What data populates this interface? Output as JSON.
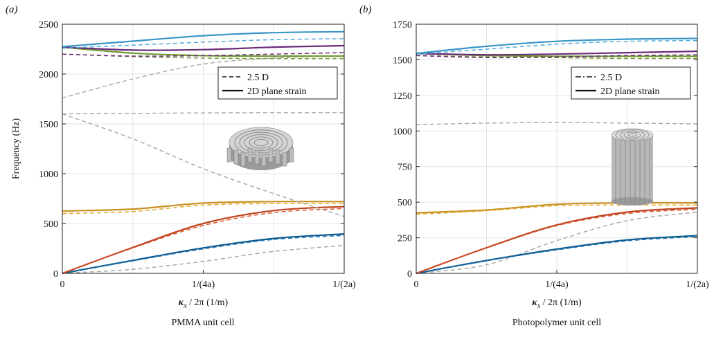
{
  "chart_data": [
    {
      "type": "line",
      "panel_label": "(a)",
      "caption": "PMMA unit cell",
      "ylabel": "Frequency (Hz)",
      "xlabel_kappa": "κ",
      "xlabel_sub": "x",
      "xlabel_rest": " / 2π (1/m)",
      "x_ticks": [
        0,
        0.5,
        1
      ],
      "x_tick_labels": [
        "0",
        "1/(4a)",
        "1/(2a)"
      ],
      "xlim": [
        0,
        1
      ],
      "ylim": [
        0,
        2500
      ],
      "y_ticks": [
        0,
        500,
        1000,
        1500,
        2000,
        2500
      ],
      "grid": true,
      "legend": {
        "position": "upper-right",
        "entries": [
          {
            "label": "2.5 D",
            "style": "dashed"
          },
          {
            "label": "2D plane strain",
            "style": "solid"
          }
        ]
      },
      "inset": "3d-spiral-disk-unit-cell",
      "series": [
        {
          "style": "dashed",
          "color": "#aaaaaa",
          "x": [
            0,
            0.25,
            0.5,
            0.75,
            1
          ],
          "y": [
            0,
            40,
            120,
            220,
            280
          ]
        },
        {
          "style": "solid",
          "color": "#0d5a8f",
          "x": [
            0,
            0.25,
            0.5,
            0.75,
            1
          ],
          "y": [
            0,
            130,
            255,
            350,
            395
          ]
        },
        {
          "style": "dashed",
          "color": "#1f70b0",
          "x": [
            0,
            0.25,
            0.5,
            0.75,
            1
          ],
          "y": [
            0,
            125,
            245,
            340,
            380
          ]
        },
        {
          "style": "solid",
          "color": "#c0431e",
          "x": [
            0,
            0.25,
            0.5,
            0.75,
            1
          ],
          "y": [
            0,
            260,
            500,
            630,
            670
          ]
        },
        {
          "style": "dashed",
          "color": "#d9552f",
          "x": [
            0,
            0.25,
            0.5,
            0.75,
            1
          ],
          "y": [
            0,
            255,
            480,
            610,
            650
          ]
        },
        {
          "style": "solid",
          "color": "#c89020",
          "x": [
            0,
            0.25,
            0.5,
            0.75,
            1
          ],
          "y": [
            625,
            645,
            705,
            720,
            720
          ]
        },
        {
          "style": "dashed",
          "color": "#e0a82a",
          "x": [
            0,
            0.25,
            0.5,
            0.75,
            1
          ],
          "y": [
            600,
            620,
            685,
            700,
            700
          ]
        },
        {
          "style": "dashed",
          "color": "#aaaaaa",
          "x": [
            0,
            0.25,
            0.5,
            0.75,
            1
          ],
          "y": [
            1600,
            1350,
            1050,
            800,
            570
          ]
        },
        {
          "style": "dashed",
          "color": "#aaaaaa",
          "x": [
            0,
            0.25,
            0.5,
            0.75,
            1
          ],
          "y": [
            1600,
            1605,
            1610,
            1612,
            1612
          ]
        },
        {
          "style": "dashed",
          "color": "#aaaaaa",
          "x": [
            0,
            0.25,
            0.5,
            0.75,
            1
          ],
          "y": [
            1760,
            1950,
            2100,
            2160,
            2185
          ]
        },
        {
          "style": "dashed",
          "color": "#7a9a3a",
          "x": [
            0,
            0.25,
            0.5,
            0.75,
            1
          ],
          "y": [
            2200,
            2175,
            2160,
            2155,
            2155
          ]
        },
        {
          "style": "solid",
          "color": "#6d9a30",
          "x": [
            0,
            0.25,
            0.5,
            0.75,
            1
          ],
          "y": [
            2270,
            2210,
            2185,
            2180,
            2180
          ]
        },
        {
          "style": "dashed",
          "color": "#6a2a7a",
          "x": [
            0,
            0.25,
            0.5,
            0.75,
            1
          ],
          "y": [
            2200,
            2180,
            2185,
            2200,
            2215
          ]
        },
        {
          "style": "solid",
          "color": "#6a2a7a",
          "x": [
            0,
            0.25,
            0.5,
            0.75,
            1
          ],
          "y": [
            2270,
            2240,
            2245,
            2270,
            2285
          ]
        },
        {
          "style": "dashed",
          "color": "#55aad8",
          "x": [
            0,
            0.25,
            0.5,
            0.75,
            1
          ],
          "y": [
            2260,
            2290,
            2320,
            2345,
            2355
          ]
        },
        {
          "style": "solid",
          "color": "#3a96c8",
          "x": [
            0,
            0.25,
            0.5,
            0.75,
            1
          ],
          "y": [
            2275,
            2330,
            2385,
            2415,
            2425
          ]
        }
      ]
    },
    {
      "type": "line",
      "panel_label": "(b)",
      "caption": "Photopolymer unit cell",
      "ylabel": "",
      "xlabel_kappa": "κ",
      "xlabel_sub": "x",
      "xlabel_rest": " / 2π (1/m)",
      "x_ticks": [
        0,
        0.5,
        1
      ],
      "x_tick_labels": [
        "0",
        "1/(4a)",
        "1/(2a)"
      ],
      "xlim": [
        0,
        1
      ],
      "ylim": [
        0,
        1750
      ],
      "y_ticks": [
        0,
        250,
        500,
        750,
        1000,
        1250,
        1500,
        1750
      ],
      "grid": true,
      "legend": {
        "position": "upper-right",
        "entries": [
          {
            "label": "2.5 D",
            "style": "dashdot"
          },
          {
            "label": "2D plane strain",
            "style": "solid"
          }
        ]
      },
      "inset": "3d-spiral-cylinder-unit-cell",
      "series": [
        {
          "style": "dashed",
          "color": "#aaaaaa",
          "x": [
            0,
            0.25,
            0.5,
            0.75,
            1
          ],
          "y": [
            0,
            60,
            230,
            370,
            430
          ]
        },
        {
          "style": "solid",
          "color": "#0d5a8f",
          "x": [
            0,
            0.25,
            0.5,
            0.75,
            1
          ],
          "y": [
            0,
            90,
            170,
            235,
            265
          ]
        },
        {
          "style": "dashed",
          "color": "#1f70b0",
          "x": [
            0,
            0.25,
            0.5,
            0.75,
            1
          ],
          "y": [
            0,
            88,
            165,
            228,
            258
          ]
        },
        {
          "style": "solid",
          "color": "#c0431e",
          "x": [
            0,
            0.25,
            0.5,
            0.75,
            1
          ],
          "y": [
            0,
            180,
            340,
            430,
            460
          ]
        },
        {
          "style": "dashed",
          "color": "#d9552f",
          "x": [
            0,
            0.25,
            0.5,
            0.75,
            1
          ],
          "y": [
            0,
            178,
            335,
            420,
            450
          ]
        },
        {
          "style": "solid",
          "color": "#c89020",
          "x": [
            0,
            0.25,
            0.5,
            0.75,
            1
          ],
          "y": [
            425,
            445,
            485,
            495,
            495
          ]
        },
        {
          "style": "dashed",
          "color": "#e0a82a",
          "x": [
            0,
            0.25,
            0.5,
            0.75,
            1
          ],
          "y": [
            415,
            440,
            475,
            480,
            480
          ]
        },
        {
          "style": "dashed",
          "color": "#aaaaaa",
          "x": [
            0,
            0.25,
            0.5,
            0.75,
            1
          ],
          "y": [
            1045,
            1055,
            1060,
            1055,
            1050
          ]
        },
        {
          "style": "dashed",
          "color": "#7a9a3a",
          "x": [
            0,
            0.25,
            0.5,
            0.75,
            1
          ],
          "y": [
            1530,
            1520,
            1515,
            1510,
            1510
          ]
        },
        {
          "style": "solid",
          "color": "#6d9a30",
          "x": [
            0,
            0.25,
            0.5,
            0.75,
            1
          ],
          "y": [
            1545,
            1530,
            1525,
            1525,
            1525
          ]
        },
        {
          "style": "dashed",
          "color": "#6a2a7a",
          "x": [
            0,
            0.25,
            0.5,
            0.75,
            1
          ],
          "y": [
            1530,
            1515,
            1520,
            1530,
            1535
          ]
        },
        {
          "style": "solid",
          "color": "#6a2a7a",
          "x": [
            0,
            0.25,
            0.5,
            0.75,
            1
          ],
          "y": [
            1545,
            1535,
            1540,
            1550,
            1560
          ]
        },
        {
          "style": "dashed",
          "color": "#55aad8",
          "x": [
            0,
            0.25,
            0.5,
            0.75,
            1
          ],
          "y": [
            1540,
            1575,
            1610,
            1630,
            1635
          ]
        },
        {
          "style": "solid",
          "color": "#3a96c8",
          "x": [
            0,
            0.25,
            0.5,
            0.75,
            1
          ],
          "y": [
            1545,
            1595,
            1630,
            1645,
            1650
          ]
        }
      ]
    }
  ]
}
